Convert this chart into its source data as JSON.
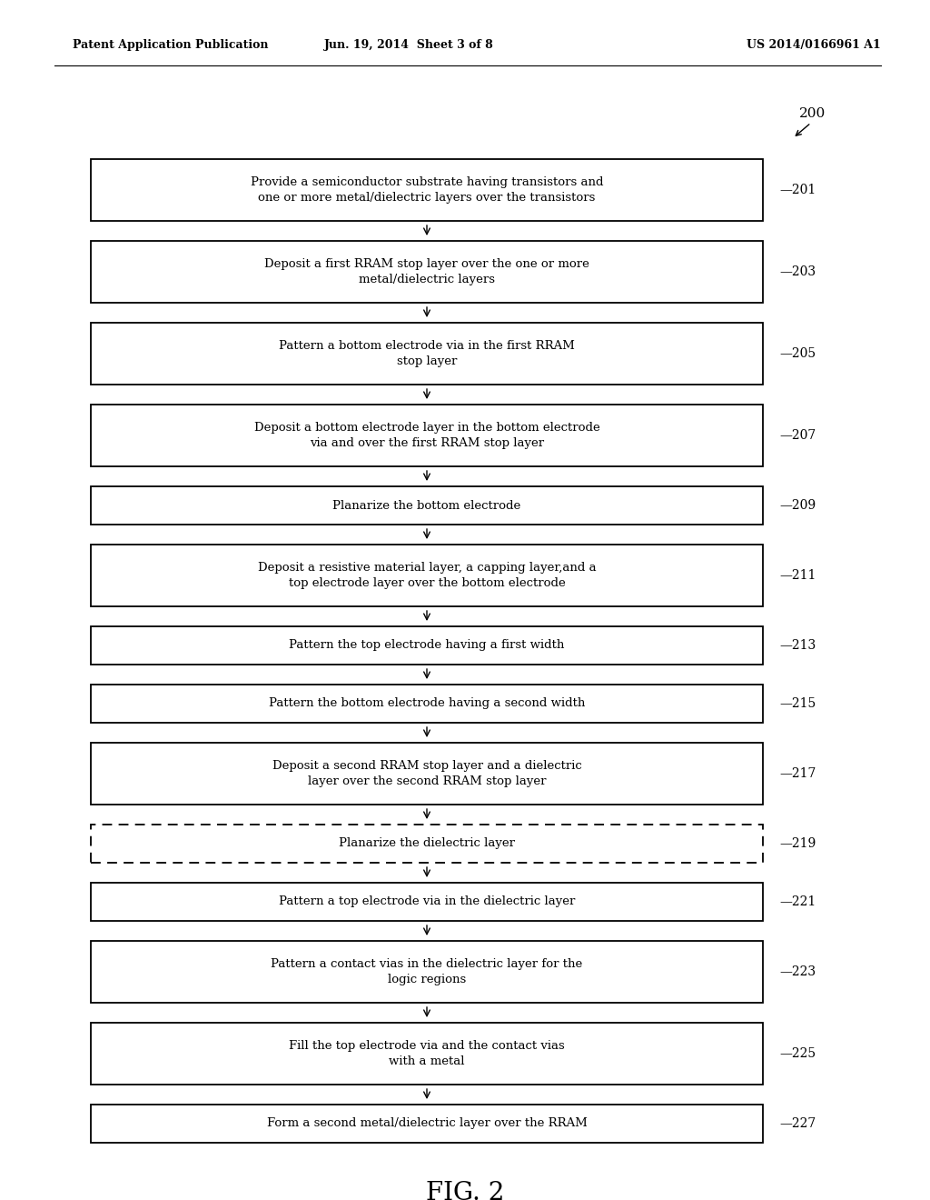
{
  "background_color": "#ffffff",
  "header_left": "Patent Application Publication",
  "header_mid": "Jun. 19, 2014  Sheet 3 of 8",
  "header_right": "US 2014/0166961 A1",
  "fig_label": "FIG. 2",
  "diagram_label": "200",
  "boxes": [
    {
      "id": 201,
      "text": "Provide a semiconductor substrate having transistors and\none or more metal/dielectric layers over the transistors",
      "dashed": false,
      "lines": 2
    },
    {
      "id": 203,
      "text": "Deposit a first RRAM stop layer over the one or more\nmetal/dielectric layers",
      "dashed": false,
      "lines": 2
    },
    {
      "id": 205,
      "text": "Pattern a bottom electrode via in the first RRAM\nstop layer",
      "dashed": false,
      "lines": 2
    },
    {
      "id": 207,
      "text": "Deposit a bottom electrode layer in the bottom electrode\nvia and over the first RRAM stop layer",
      "dashed": false,
      "lines": 2
    },
    {
      "id": 209,
      "text": "Planarize the bottom electrode",
      "dashed": false,
      "lines": 1
    },
    {
      "id": 211,
      "text": "Deposit a resistive material layer, a capping layer,and a\ntop electrode layer over the bottom electrode",
      "dashed": false,
      "lines": 2
    },
    {
      "id": 213,
      "text": "Pattern the top electrode having a first width",
      "dashed": false,
      "lines": 1
    },
    {
      "id": 215,
      "text": "Pattern the bottom electrode having a second width",
      "dashed": false,
      "lines": 1
    },
    {
      "id": 217,
      "text": "Deposit a second RRAM stop layer and a dielectric\nlayer over the second RRAM stop layer",
      "dashed": false,
      "lines": 2
    },
    {
      "id": 219,
      "text": "Planarize the dielectric layer",
      "dashed": true,
      "lines": 1
    },
    {
      "id": 221,
      "text": "Pattern a top electrode via in the dielectric layer",
      "dashed": false,
      "lines": 1
    },
    {
      "id": 223,
      "text": "Pattern a contact vias in the dielectric layer for the\nlogic regions",
      "dashed": false,
      "lines": 2
    },
    {
      "id": 225,
      "text": "Fill the top electrode via and the contact vias\nwith a metal",
      "dashed": false,
      "lines": 2
    },
    {
      "id": 227,
      "text": "Form a second metal/dielectric layer over the RRAM",
      "dashed": false,
      "lines": 1
    }
  ]
}
